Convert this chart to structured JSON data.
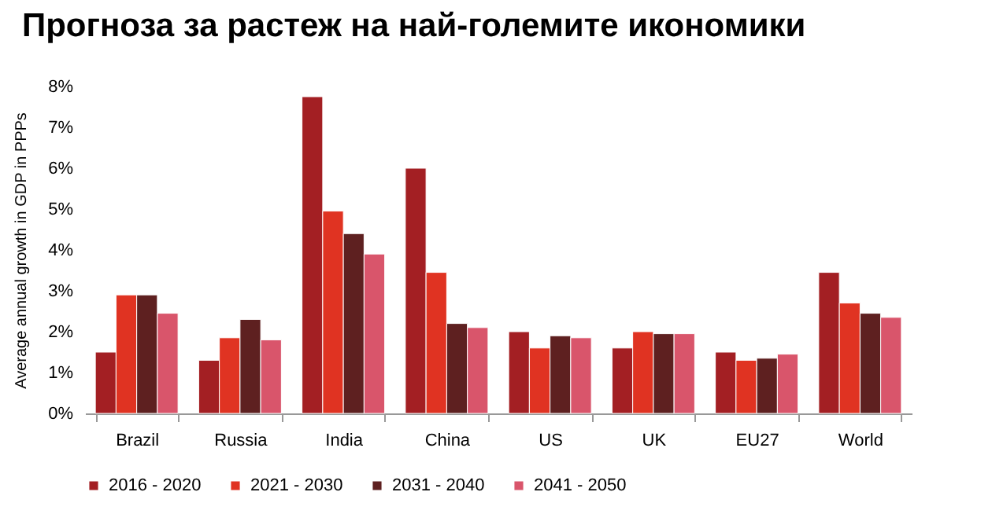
{
  "chart_data": {
    "type": "bar",
    "title": "Прогноза за растеж на най-големите икономики",
    "ylabel": "Average annual growth in GDP in PPPs",
    "categories": [
      "Brazil",
      "Russia",
      "India",
      "China",
      "US",
      "UK",
      "EU27",
      "World"
    ],
    "series": [
      {
        "name": "2016 - 2020",
        "color": "#a31f23",
        "values": [
          1.5,
          1.3,
          7.75,
          6.0,
          2.0,
          1.6,
          1.5,
          3.45
        ]
      },
      {
        "name": "2021 - 2030",
        "color": "#e03322",
        "values": [
          2.9,
          1.85,
          4.95,
          3.45,
          1.6,
          2.0,
          1.3,
          2.7
        ]
      },
      {
        "name": "2031 - 2040",
        "color": "#5e2020",
        "values": [
          2.9,
          2.3,
          4.4,
          2.2,
          1.9,
          1.95,
          1.35,
          2.45
        ]
      },
      {
        "name": "2041 - 2050",
        "color": "#d9556b",
        "values": [
          2.45,
          1.8,
          3.9,
          2.1,
          1.85,
          1.95,
          1.45,
          2.35
        ]
      }
    ],
    "ylim": [
      0,
      8
    ],
    "yticks": [
      {
        "value": 0,
        "label": "0%"
      },
      {
        "value": 1,
        "label": "1%"
      },
      {
        "value": 2,
        "label": "2%"
      },
      {
        "value": 3,
        "label": "3%"
      },
      {
        "value": 4,
        "label": "4%"
      },
      {
        "value": 5,
        "label": "5%"
      },
      {
        "value": 6,
        "label": "6%"
      },
      {
        "value": 7,
        "label": "7%"
      },
      {
        "value": 8,
        "label": "8%"
      }
    ],
    "grid": false,
    "legend": "bottom"
  }
}
